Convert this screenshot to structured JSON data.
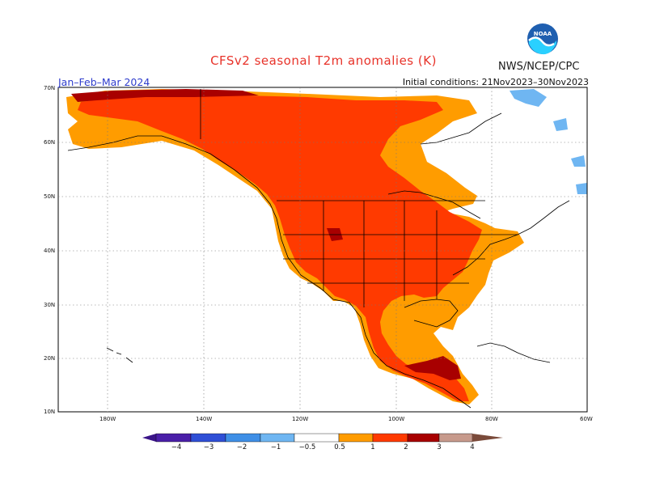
{
  "title": "CFSv2 seasonal T2m anomalies (K)",
  "agency": "NWS/NCEP/CPC",
  "season": "Jan–Feb–Mar 2024",
  "initial_conditions": "Initial conditions: 21Nov2023–30Nov2023",
  "logo_text": "NOAA",
  "lat_labels": [
    "70N",
    "60N",
    "50N",
    "40N",
    "30N",
    "20N",
    "10N"
  ],
  "lon_labels": [
    "180W",
    "140W",
    "120W",
    "100W",
    "80W",
    "60W"
  ],
  "colorbar_labels": [
    "−4",
    "−3",
    "−2",
    "−1",
    "−0.5",
    "0.5",
    "1",
    "2",
    "3",
    "4"
  ],
  "colorbar_colors": [
    "#4a1fa8",
    "#2f4fd6",
    "#3f8fe6",
    "#6fb6f2",
    "#ffffff",
    "#ff9c00",
    "#ff3a00",
    "#a80000",
    "#c79a8c",
    "#7a4a3a"
  ],
  "anomaly_legend": {
    "light_orange": "#ff9c00",
    "red_orange": "#ff3a00",
    "dark_red": "#a80000",
    "light_blue": "#6fb6f2"
  }
}
